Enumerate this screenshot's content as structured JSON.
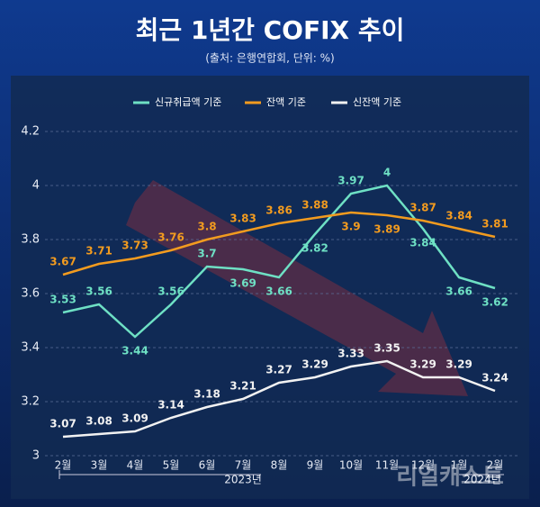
{
  "chart_data": {
    "type": "line",
    "title": "최근 1년간 COFIX 추이",
    "subtitle": "(출처: 은행연합회, 단위: %)",
    "categories": [
      "2월",
      "3월",
      "4월",
      "5월",
      "6월",
      "7월",
      "8월",
      "9월",
      "10월",
      "11월",
      "12월",
      "1월",
      "2월"
    ],
    "year_labels": [
      "2023년",
      "2024년"
    ],
    "watermark": "리얼캐스트",
    "series": [
      {
        "name": "신규취급액 기준",
        "color": "#6ee0c4",
        "values": [
          3.53,
          3.56,
          3.44,
          3.56,
          3.7,
          3.69,
          3.66,
          3.82,
          3.97,
          4,
          3.84,
          3.66,
          3.62
        ]
      },
      {
        "name": "잔액 기준",
        "color": "#f29b1f",
        "values": [
          3.67,
          3.71,
          3.73,
          3.76,
          3.8,
          3.83,
          3.86,
          3.88,
          3.9,
          3.89,
          3.87,
          3.84,
          3.81
        ]
      },
      {
        "name": "신잔액 기준",
        "color": "#f2f2f2",
        "values": [
          3.07,
          3.08,
          3.09,
          3.14,
          3.18,
          3.21,
          3.27,
          3.29,
          3.33,
          3.35,
          3.29,
          3.29,
          3.24
        ]
      }
    ],
    "ylim": [
      3,
      4.2
    ],
    "yticks": [
      3,
      3.2,
      3.4,
      3.6,
      3.8,
      4,
      4.2
    ],
    "grid": true,
    "legend": "top"
  }
}
